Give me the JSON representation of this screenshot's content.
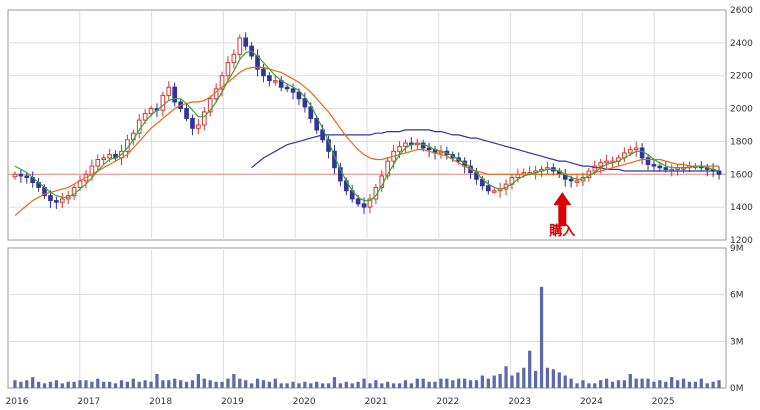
{
  "chart_data": [
    {
      "type": "candlestick",
      "title": "",
      "y_axis_position": "right",
      "ylim": [
        1200,
        2600
      ],
      "yticks": [
        "2600",
        "2400",
        "2200",
        "2000",
        "1800",
        "1600",
        "1400",
        "1200"
      ],
      "reference_line": 1600,
      "x_ticks": [
        "2016",
        "2017",
        "2018",
        "2019",
        "2020",
        "2021",
        "2022",
        "2023",
        "2024",
        "2025"
      ],
      "x_start": 2016.0,
      "x_end": 2026.0,
      "grid": true,
      "colors": {
        "up": "#dd3333",
        "down": "#333399",
        "ma_short": "#33aa33",
        "ma_mid": "#ee6611",
        "ma_long": "#3333aa",
        "reference": "#ee8888",
        "annotation": "#dd0000"
      },
      "annotation": {
        "text": "購入",
        "x": 2023.72,
        "pointing_to_price": 1540
      },
      "close": [
        1600,
        1590,
        1580,
        1550,
        1520,
        1470,
        1440,
        1430,
        1450,
        1470,
        1520,
        1560,
        1600,
        1650,
        1690,
        1700,
        1720,
        1700,
        1740,
        1810,
        1850,
        1930,
        1970,
        2000,
        1990,
        2080,
        2130,
        2040,
        2000,
        1940,
        1880,
        1900,
        1980,
        2060,
        2120,
        2200,
        2280,
        2330,
        2430,
        2380,
        2320,
        2240,
        2200,
        2170,
        2170,
        2130,
        2120,
        2100,
        2060,
        2010,
        1940,
        1870,
        1810,
        1740,
        1640,
        1560,
        1500,
        1450,
        1420,
        1400,
        1450,
        1520,
        1590,
        1680,
        1740,
        1770,
        1790,
        1780,
        1790,
        1760,
        1750,
        1730,
        1740,
        1720,
        1700,
        1680,
        1650,
        1610,
        1570,
        1530,
        1500,
        1500,
        1510,
        1540,
        1580,
        1600,
        1610,
        1610,
        1620,
        1630,
        1640,
        1620,
        1600,
        1570,
        1560,
        1560,
        1580,
        1620,
        1650,
        1670,
        1680,
        1680,
        1700,
        1730,
        1750,
        1760,
        1700,
        1660,
        1650,
        1640,
        1630,
        1630,
        1640,
        1640,
        1650,
        1650,
        1640,
        1630,
        1620,
        1600
      ],
      "ma_short": [
        1650,
        1630,
        1610,
        1580,
        1550,
        1520,
        1490,
        1470,
        1460,
        1460,
        1480,
        1510,
        1540,
        1580,
        1620,
        1660,
        1690,
        1700,
        1720,
        1760,
        1810,
        1870,
        1920,
        1960,
        1990,
        2020,
        2050,
        2060,
        2060,
        2030,
        1990,
        1950,
        1950,
        1990,
        2040,
        2100,
        2170,
        2230,
        2300,
        2340,
        2350,
        2320,
        2280,
        2240,
        2200,
        2170,
        2150,
        2130,
        2110,
        2070,
        2020,
        1950,
        1880,
        1800,
        1710,
        1630,
        1560,
        1500,
        1460,
        1440,
        1440,
        1470,
        1530,
        1600,
        1660,
        1720,
        1760,
        1780,
        1790,
        1780,
        1770,
        1750,
        1740,
        1730,
        1710,
        1690,
        1670,
        1640,
        1610,
        1570,
        1540,
        1520,
        1510,
        1520,
        1540,
        1570,
        1590,
        1600,
        1610,
        1620,
        1630,
        1630,
        1620,
        1600,
        1580,
        1570,
        1570,
        1590,
        1610,
        1640,
        1660,
        1670,
        1680,
        1700,
        1720,
        1740,
        1740,
        1720,
        1690,
        1670,
        1650,
        1640,
        1640,
        1640,
        1640,
        1650,
        1650,
        1640,
        1630,
        1620
      ],
      "ma_mid": [
        1350,
        1380,
        1410,
        1440,
        1460,
        1480,
        1490,
        1500,
        1510,
        1520,
        1540,
        1560,
        1580,
        1600,
        1620,
        1640,
        1660,
        1680,
        1700,
        1720,
        1760,
        1800,
        1840,
        1880,
        1910,
        1940,
        1970,
        2000,
        2020,
        2030,
        2040,
        2040,
        2050,
        2070,
        2100,
        2130,
        2160,
        2190,
        2220,
        2240,
        2250,
        2250,
        2250,
        2240,
        2230,
        2220,
        2200,
        2180,
        2160,
        2130,
        2100,
        2060,
        2020,
        1980,
        1930,
        1880,
        1830,
        1790,
        1750,
        1720,
        1700,
        1690,
        1690,
        1700,
        1710,
        1720,
        1730,
        1740,
        1750,
        1750,
        1740,
        1730,
        1720,
        1710,
        1690,
        1670,
        1650,
        1630,
        1620,
        1610,
        1600,
        1600,
        1600,
        1600,
        1600,
        1600,
        1600,
        1600,
        1600,
        1600,
        1600,
        1600,
        1600,
        1600,
        1600,
        1600,
        1600,
        1600,
        1610,
        1620,
        1630,
        1640,
        1650,
        1660,
        1670,
        1680,
        1690,
        1690,
        1690,
        1690,
        1680,
        1670,
        1660,
        1660,
        1650,
        1650,
        1650,
        1650,
        1650,
        1650
      ],
      "ma_long": [
        null,
        null,
        null,
        null,
        null,
        null,
        null,
        null,
        null,
        null,
        null,
        null,
        null,
        null,
        null,
        null,
        null,
        null,
        null,
        null,
        null,
        null,
        null,
        null,
        null,
        null,
        null,
        null,
        null,
        null,
        null,
        null,
        null,
        null,
        null,
        null,
        null,
        null,
        null,
        null,
        1640,
        1670,
        1700,
        1720,
        1740,
        1760,
        1780,
        1790,
        1800,
        1810,
        1820,
        1830,
        1840,
        1840,
        1840,
        1840,
        1840,
        1840,
        1840,
        1840,
        1840,
        1850,
        1850,
        1860,
        1860,
        1860,
        1870,
        1870,
        1870,
        1870,
        1870,
        1860,
        1860,
        1850,
        1840,
        1840,
        1830,
        1820,
        1820,
        1810,
        1800,
        1790,
        1780,
        1770,
        1760,
        1750,
        1740,
        1730,
        1720,
        1710,
        1700,
        1690,
        1680,
        1680,
        1670,
        1660,
        1650,
        1650,
        1640,
        1640,
        1630,
        1630,
        1630,
        1620,
        1620,
        1620,
        1620,
        1620,
        1620,
        1620,
        1620,
        1620,
        1620,
        1620,
        1620,
        1620,
        1620,
        1620,
        1620,
        1620
      ]
    },
    {
      "type": "bar",
      "title": "",
      "y_axis_position": "right",
      "ylim": [
        0,
        9
      ],
      "ytick_values": [
        9,
        6,
        3,
        0
      ],
      "yticks": [
        "9M",
        "6M",
        "3M",
        "0M"
      ],
      "x_ticks": [
        "2016",
        "2017",
        "2018",
        "2019",
        "2020",
        "2021",
        "2022",
        "2023",
        "2024",
        "2025"
      ],
      "x_start": 2016.0,
      "x_end": 2026.0,
      "color": "#5a6aaa",
      "values_millions": [
        0.5,
        0.4,
        0.5,
        0.7,
        0.4,
        0.3,
        0.4,
        0.5,
        0.3,
        0.4,
        0.4,
        0.5,
        0.5,
        0.4,
        0.6,
        0.4,
        0.4,
        0.3,
        0.5,
        0.4,
        0.6,
        0.4,
        0.5,
        0.4,
        0.9,
        0.5,
        0.5,
        0.6,
        0.5,
        0.4,
        0.5,
        0.9,
        0.6,
        0.5,
        0.4,
        0.4,
        0.6,
        0.9,
        0.6,
        0.5,
        0.3,
        0.6,
        0.5,
        0.4,
        0.6,
        0.3,
        0.3,
        0.4,
        0.3,
        0.4,
        0.3,
        0.4,
        0.3,
        0.3,
        0.7,
        0.3,
        0.4,
        0.3,
        0.4,
        0.6,
        0.3,
        0.5,
        0.3,
        0.4,
        0.3,
        0.3,
        0.5,
        0.3,
        0.6,
        0.6,
        0.4,
        0.4,
        0.6,
        0.6,
        0.5,
        0.6,
        0.6,
        0.5,
        0.5,
        0.8,
        0.6,
        0.8,
        0.9,
        1.4,
        0.8,
        1.0,
        1.3,
        2.4,
        1.1,
        6.5,
        1.3,
        1.2,
        1.0,
        0.8,
        0.6,
        0.3,
        0.5,
        0.3,
        0.3,
        0.5,
        0.6,
        0.4,
        0.5,
        0.5,
        0.9,
        0.6,
        0.6,
        0.6,
        0.4,
        0.5,
        0.4,
        0.7,
        0.5,
        0.6,
        0.4,
        0.4,
        0.6,
        0.3,
        0.4,
        0.5
      ]
    }
  ]
}
